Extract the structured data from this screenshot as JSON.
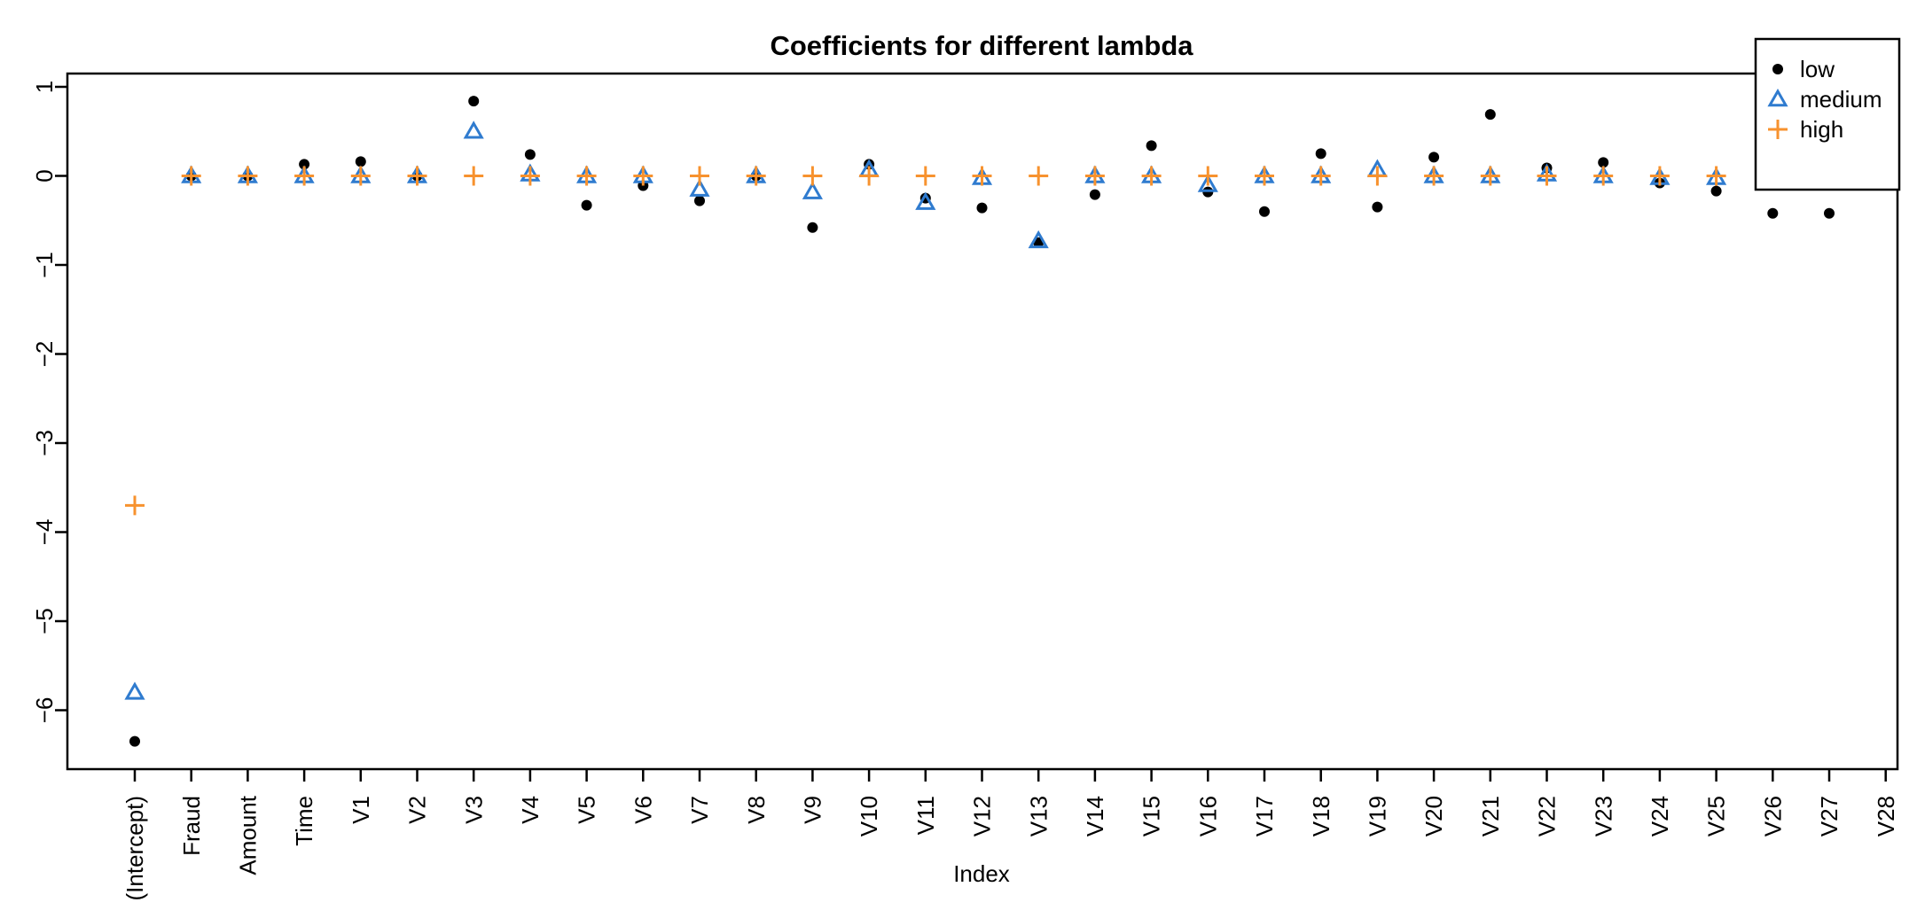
{
  "chart_data": {
    "type": "scatter",
    "title": "Coefficients for different lambda",
    "xlabel": "Index",
    "ylabel": "",
    "ylim": [
      -6.6,
      1.15
    ],
    "yticks": [
      1,
      0,
      -1,
      -2,
      -3,
      -4,
      -5,
      -6
    ],
    "ytick_labels": [
      "1",
      "0",
      "−1",
      "−2",
      "−3",
      "−4",
      "−5",
      "−6"
    ],
    "categories": [
      "(Intercept)",
      "Fraud",
      "Amount",
      "Time",
      "V1",
      "V2",
      "V3",
      "V4",
      "V5",
      "V6",
      "V7",
      "V8",
      "V9",
      "V10",
      "V11",
      "V12",
      "V13",
      "V14",
      "V15",
      "V16",
      "V17",
      "V18",
      "V19",
      "V20",
      "V21",
      "V22",
      "V23",
      "V24",
      "V25",
      "V26",
      "V27",
      "V28"
    ],
    "category_labels": [
      "(Intercept)",
      "Fraud",
      "Amount",
      "Time",
      "V1",
      "V2",
      "V3",
      "V4",
      "V5",
      "V6",
      "V7",
      "V8",
      "V9",
      "V10",
      "V11",
      "V12",
      "V13",
      "V14",
      "V15",
      "V16",
      "V17",
      "V18",
      "V19",
      "V20",
      "V21",
      "V22",
      "V23",
      "V24",
      "V25",
      "V26",
      "V27",
      "V28"
    ],
    "grid": false,
    "legend_position": "top-right",
    "series": [
      {
        "name": "low",
        "marker": "filled-circle",
        "color": "#000000",
        "values": [
          -6.35,
          0,
          0,
          0.13,
          0.16,
          0,
          0.84,
          0.24,
          -0.33,
          -0.11,
          -0.28,
          0,
          -0.58,
          0.13,
          -0.25,
          -0.36,
          -0.75,
          -0.21,
          0.34,
          -0.18,
          -0.4,
          0.25,
          -0.35,
          0.21,
          0.69,
          0.09,
          0.15,
          -0.08,
          -0.17,
          -0.42,
          -0.42,
          null
        ]
      },
      {
        "name": "medium",
        "marker": "open-triangle",
        "color": "#2F7BCF",
        "values": [
          -5.8,
          0,
          0,
          0,
          0,
          0,
          0.5,
          0.02,
          0,
          0,
          -0.15,
          0,
          -0.18,
          0.07,
          -0.3,
          -0.02,
          -0.73,
          0,
          0,
          -0.1,
          0,
          0,
          0.07,
          0,
          0,
          0.02,
          0,
          -0.02,
          -0.02,
          -0.02,
          -0.02,
          null
        ]
      },
      {
        "name": "high",
        "marker": "plus",
        "color": "#F7922E",
        "values": [
          -3.7,
          0,
          0,
          0,
          0,
          0,
          0,
          0,
          0,
          0,
          0,
          0,
          0,
          0,
          0,
          0,
          0,
          0,
          0,
          0,
          0,
          0,
          0,
          0,
          0,
          0,
          0,
          0,
          0,
          0,
          0,
          null
        ]
      }
    ]
  }
}
